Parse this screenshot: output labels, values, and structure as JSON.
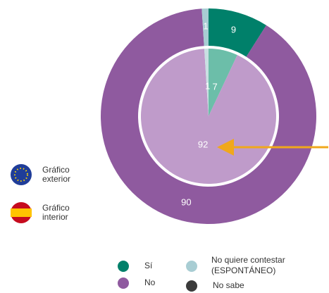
{
  "chart_data": {
    "type": "donut",
    "categories": [
      "Sí",
      "No",
      "No quiere contestar (ESPONTÁNEO)",
      "No sabe"
    ],
    "rings": [
      {
        "name": "Gráfico exterior",
        "values": [
          9,
          90,
          1,
          0
        ],
        "colors": [
          "#00806a",
          "#8f5a9f",
          "#a8cdd3",
          "#3b3b3b"
        ]
      },
      {
        "name": "Gráfico interior",
        "values": [
          7,
          92,
          1,
          0
        ],
        "colors": [
          "#6cbea9",
          "#bf9bca",
          "#c9dfe2",
          "#3b3b3b"
        ]
      }
    ],
    "legend_colors": [
      "#00806a",
      "#8f5a9f",
      "#a8cdd3",
      "#3b3b3b"
    ]
  }
}
